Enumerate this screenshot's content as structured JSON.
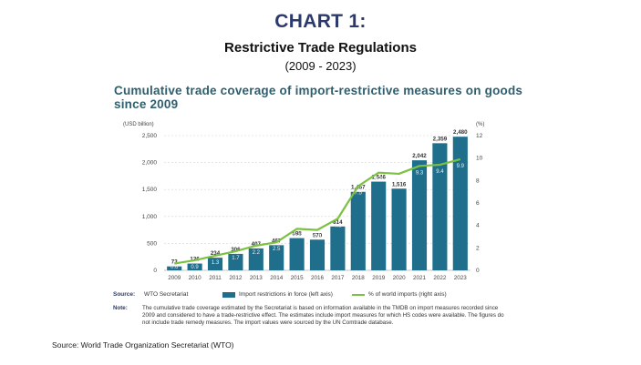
{
  "header": {
    "title": "CHART 1:",
    "subtitle": "Restrictive Trade Regulations",
    "period": "(2009 - 2023)"
  },
  "figure_title": "Cumulative trade coverage of import-restrictive measures on goods since 2009",
  "chart_data": {
    "type": "bar",
    "title": "Cumulative trade coverage of import-restrictive measures on goods since 2009",
    "categories": [
      "2009",
      "2010",
      "2011",
      "2012",
      "2013",
      "2014",
      "2015",
      "2016",
      "2017",
      "2018",
      "2019",
      "2020",
      "2021",
      "2022",
      "2023"
    ],
    "series": [
      {
        "name": "Import restrictions in force (left axis)",
        "axis": "left",
        "type": "bar",
        "color": "#1f6e8c",
        "values": [
          73,
          126,
          234,
          306,
          407,
          467,
          598,
          570,
          814,
          1457,
          1646,
          1516,
          2042,
          2359,
          2480
        ],
        "labels": [
          "73",
          "126",
          "234",
          "306",
          "407",
          "467",
          "598",
          "570",
          "814",
          "1,457",
          "1,646",
          "1,516",
          "2,042",
          "2,359",
          "2,480"
        ]
      },
      {
        "name": "% of world imports (right axis)",
        "axis": "right",
        "type": "line",
        "color": "#7cc242",
        "values": [
          0.6,
          0.9,
          1.3,
          1.7,
          2.2,
          2.5,
          3.7,
          3.6,
          4.6,
          7.5,
          8.7,
          8.6,
          9.3,
          9.4,
          9.9
        ],
        "labels": [
          "0.6",
          "0.9",
          "1.3",
          "1.7",
          "2.2",
          "2.5",
          "3.7",
          "3.6",
          "4.6",
          "7.5",
          "8.7",
          "8.6",
          "9.3",
          "9.4",
          "9.9"
        ]
      }
    ],
    "y_left": {
      "label": "(USD billion)",
      "ylim": [
        0,
        2500
      ],
      "ticks": [
        0,
        500,
        1000,
        1500,
        2000,
        2500
      ],
      "tick_labels": [
        "0",
        "500",
        "1,000",
        "1,500",
        "2,000",
        "2,500"
      ]
    },
    "y_right": {
      "label": "(%)",
      "ylim": [
        0,
        12
      ],
      "ticks": [
        0,
        2,
        4,
        6,
        8,
        10,
        12
      ]
    },
    "grid": true
  },
  "legend": {
    "source_label": "Source:",
    "source_value": "WTO Secretariat",
    "bar_item": "Import restrictions in force (left axis)",
    "line_item": "% of world imports (right axis)"
  },
  "note": {
    "label": "Note:",
    "text": "The cumulative trade coverage estimated by the Secretariat is based on information available in the TMDB on import measures recorded since 2009 and considered to have a trade-restrictive effect. The estimates include import measures for which HS codes were available. The figures do not include trade remedy measures. The import values were sourced by the UN Comtrade database."
  },
  "footer_source": "Source: World Trade Organization Secretariat (WTO)",
  "colors": {
    "bar": "#1f6e8c",
    "line": "#7cc242",
    "title": "#2b3a6b",
    "figure_title": "#2f5f6e"
  }
}
